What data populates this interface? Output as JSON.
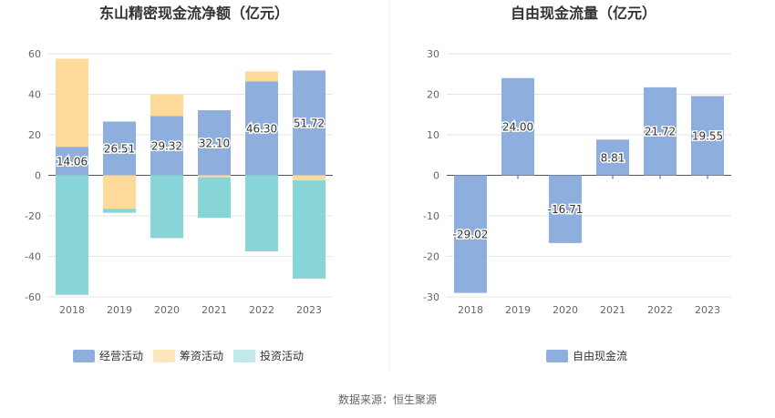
{
  "source_text": "数据来源：恒生聚源",
  "colors": {
    "operating": "#8eaedd",
    "financing": "#fdd99a",
    "investing": "#88d5d8",
    "free_cash_flow": "#8eaedd",
    "grid": "#e6e6e6",
    "axis_text": "#666666",
    "title_text": "#333333"
  },
  "chart_data": [
    {
      "type": "bar",
      "stacked": true,
      "title": "东山精密现金流净额（亿元）",
      "categories": [
        "2018",
        "2019",
        "2020",
        "2021",
        "2022",
        "2023"
      ],
      "ylim": [
        -60,
        60
      ],
      "yticks": [
        -60,
        -40,
        -20,
        0,
        20,
        40,
        60
      ],
      "grid": true,
      "legend": "bottom-center",
      "series": [
        {
          "name": "经营活动",
          "values": [
            14.06,
            26.51,
            29.32,
            32.1,
            46.3,
            51.72
          ],
          "labels": [
            "14.06",
            "26.51",
            "29.32",
            "32.10",
            "46.30",
            "51.72"
          ]
        },
        {
          "name": "筹资活动",
          "values": [
            43.5,
            -16.5,
            10.5,
            -1.0,
            5.0,
            -2.5
          ]
        },
        {
          "name": "投资活动",
          "values": [
            -59.0,
            -2.0,
            -31.0,
            -20.0,
            -37.5,
            -48.5
          ]
        }
      ]
    },
    {
      "type": "bar",
      "title": "自由现金流量（亿元）",
      "categories": [
        "2018",
        "2019",
        "2020",
        "2021",
        "2022",
        "2023"
      ],
      "ylim": [
        -30,
        30
      ],
      "yticks": [
        -30,
        -20,
        -10,
        0,
        10,
        20,
        30
      ],
      "grid": true,
      "legend": "bottom-center",
      "series": [
        {
          "name": "自由现金流",
          "values": [
            -29.02,
            24.0,
            -16.71,
            8.81,
            21.72,
            19.55
          ],
          "labels": [
            "-29.02",
            "24.00",
            "-16.71",
            "8.81",
            "21.72",
            "19.55"
          ]
        }
      ]
    }
  ]
}
